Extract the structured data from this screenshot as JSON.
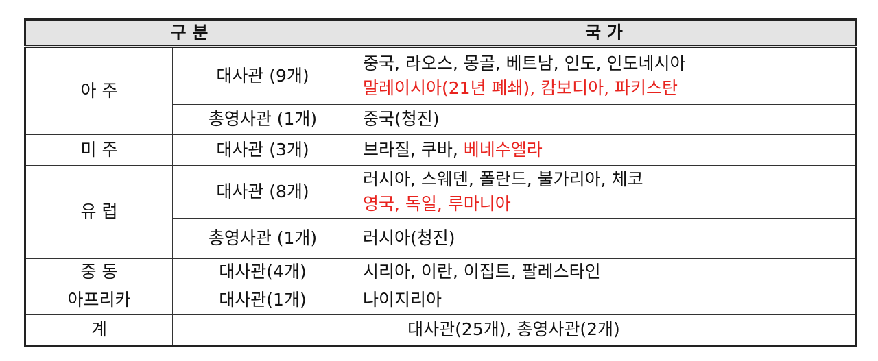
{
  "header": {
    "category": "구 분",
    "countries": "국 가"
  },
  "colors": {
    "highlight": "#e8231e"
  },
  "rows": [
    {
      "region": "아 주",
      "type": "대사관 (9개)",
      "lines": [
        [
          {
            "t": "중국, 라오스, 몽골, 베트남, 인도, 인도네시아",
            "red": false
          }
        ],
        [
          {
            "t": "말레이시아(21년 폐쇄), 캄보디아, 파키스탄",
            "red": true
          }
        ]
      ]
    },
    {
      "type": "총영사관 (1개)",
      "lines": [
        [
          {
            "t": "중국(청진)",
            "red": false
          }
        ]
      ]
    },
    {
      "region": "미 주",
      "type": "대사관 (3개)",
      "lines": [
        [
          {
            "t": "브라질, 쿠바, ",
            "red": false
          },
          {
            "t": "베네수엘라",
            "red": true
          }
        ]
      ]
    },
    {
      "region": "유 럽",
      "type": "대사관 (8개)",
      "lines": [
        [
          {
            "t": "러시아, 스웨덴, 폴란드, 불가리아, 체코",
            "red": false
          }
        ],
        [
          {
            "t": "영국, 독일, 루마니아",
            "red": true
          }
        ]
      ]
    },
    {
      "type": "총영사관 (1개)",
      "lines": [
        [
          {
            "t": "러시아(청진)",
            "red": false
          }
        ]
      ]
    },
    {
      "region": "중 동",
      "type": "대사관(4개)",
      "lines": [
        [
          {
            "t": "시리아, 이란, 이집트, 팔레스타인",
            "red": false
          }
        ]
      ]
    },
    {
      "region": "아프리카",
      "type": "대사관(1개)",
      "lines": [
        [
          {
            "t": "나이지리아",
            "red": false
          }
        ]
      ]
    }
  ],
  "total": {
    "label": "계",
    "value": "대사관(25개), 총영사관(2개)"
  }
}
